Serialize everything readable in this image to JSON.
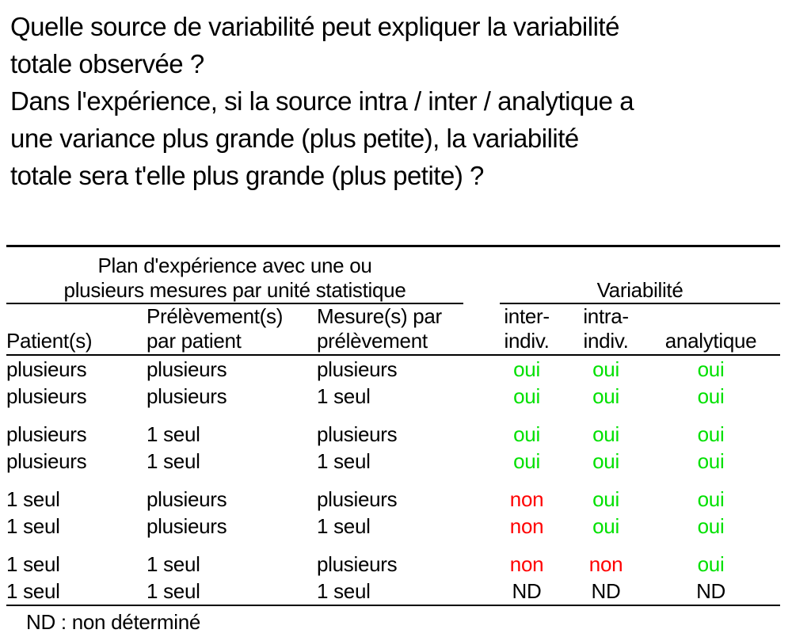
{
  "question": {
    "lines": [
      "Quelle source de variabilité peut expliquer la variabilité",
      "totale observée ?",
      "Dans l'expérience, si la source intra / inter / analytique a",
      "une variance plus grande (plus petite), la variabilité",
      "totale sera t'elle plus grande (plus petite) ?"
    ]
  },
  "table": {
    "group_headers": {
      "design_line1": "Plan d'expérience avec une ou",
      "design_line2": "plusieurs mesures par unité statistique",
      "variability": "Variabilité"
    },
    "columns": [
      {
        "line1": "",
        "line2": "Patient(s)"
      },
      {
        "line1": "Prélèvement(s)",
        "line2": "par patient"
      },
      {
        "line1": "Mesure(s) par",
        "line2": "prélèvement"
      },
      {
        "line1": "inter-",
        "line2": "indiv."
      },
      {
        "line1": "intra-",
        "line2": "indiv."
      },
      {
        "line1": "",
        "line2": "analytique"
      }
    ],
    "rows": [
      {
        "gap_before": false,
        "cells": [
          {
            "text": "plusieurs",
            "color": "black"
          },
          {
            "text": "plusieurs",
            "color": "black"
          },
          {
            "text": "plusieurs",
            "color": "black"
          },
          {
            "text": "oui",
            "color": "green"
          },
          {
            "text": "oui",
            "color": "green"
          },
          {
            "text": "oui",
            "color": "green"
          }
        ]
      },
      {
        "gap_before": false,
        "cells": [
          {
            "text": "plusieurs",
            "color": "black"
          },
          {
            "text": "plusieurs",
            "color": "black"
          },
          {
            "text": "1 seul",
            "color": "black"
          },
          {
            "text": "oui",
            "color": "green"
          },
          {
            "text": "oui",
            "color": "green"
          },
          {
            "text": "oui",
            "color": "green"
          }
        ]
      },
      {
        "gap_before": true,
        "cells": [
          {
            "text": "plusieurs",
            "color": "black"
          },
          {
            "text": "1 seul",
            "color": "black"
          },
          {
            "text": "plusieurs",
            "color": "black"
          },
          {
            "text": "oui",
            "color": "green"
          },
          {
            "text": "oui",
            "color": "green"
          },
          {
            "text": "oui",
            "color": "green"
          }
        ]
      },
      {
        "gap_before": false,
        "cells": [
          {
            "text": "plusieurs",
            "color": "black"
          },
          {
            "text": "1 seul",
            "color": "black"
          },
          {
            "text": "1 seul",
            "color": "black"
          },
          {
            "text": "oui",
            "color": "green"
          },
          {
            "text": "oui",
            "color": "green"
          },
          {
            "text": "oui",
            "color": "green"
          }
        ]
      },
      {
        "gap_before": true,
        "cells": [
          {
            "text": "1 seul",
            "color": "black"
          },
          {
            "text": "plusieurs",
            "color": "black"
          },
          {
            "text": "plusieurs",
            "color": "black"
          },
          {
            "text": "non",
            "color": "red"
          },
          {
            "text": "oui",
            "color": "green"
          },
          {
            "text": "oui",
            "color": "green"
          }
        ]
      },
      {
        "gap_before": false,
        "cells": [
          {
            "text": "1 seul",
            "color": "black"
          },
          {
            "text": "plusieurs",
            "color": "black"
          },
          {
            "text": "1 seul",
            "color": "black"
          },
          {
            "text": "non",
            "color": "red"
          },
          {
            "text": "oui",
            "color": "green"
          },
          {
            "text": "oui",
            "color": "green"
          }
        ]
      },
      {
        "gap_before": true,
        "cells": [
          {
            "text": "1 seul",
            "color": "black"
          },
          {
            "text": "1 seul",
            "color": "black"
          },
          {
            "text": "plusieurs",
            "color": "black"
          },
          {
            "text": "non",
            "color": "red"
          },
          {
            "text": "non",
            "color": "red"
          },
          {
            "text": "oui",
            "color": "green"
          }
        ]
      },
      {
        "gap_before": false,
        "cells": [
          {
            "text": "1 seul",
            "color": "black"
          },
          {
            "text": "1 seul",
            "color": "black"
          },
          {
            "text": "1 seul",
            "color": "black"
          },
          {
            "text": "ND",
            "color": "black"
          },
          {
            "text": "ND",
            "color": "black"
          },
          {
            "text": "ND",
            "color": "black"
          }
        ]
      }
    ],
    "footnote": "ND : non déterminé"
  },
  "colors": {
    "green": "#00e000",
    "red": "#ff0000",
    "black": "#000000"
  }
}
